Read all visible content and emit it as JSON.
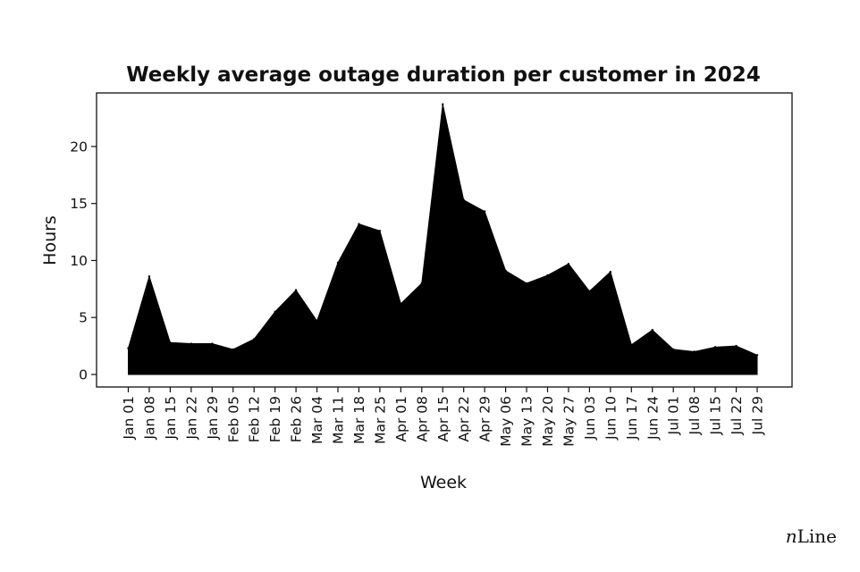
{
  "brand": {
    "n": "n",
    "rest": "Line"
  },
  "chart_data": {
    "type": "area",
    "title": "Weekly average outage duration per customer in 2024",
    "xlabel": "Week",
    "ylabel": "Hours",
    "ylim": [
      -1.1,
      24.7
    ],
    "yticks": [
      0,
      5,
      10,
      15,
      20
    ],
    "grid": false,
    "color": "#000000",
    "categories": [
      "Jan 01",
      "Jan 08",
      "Jan 15",
      "Jan 22",
      "Jan 29",
      "Feb 05",
      "Feb 12",
      "Feb 19",
      "Feb 26",
      "Mar 04",
      "Mar 11",
      "Mar 18",
      "Mar 25",
      "Apr 01",
      "Apr 08",
      "Apr 15",
      "Apr 22",
      "Apr 29",
      "May 06",
      "May 13",
      "May 20",
      "May 27",
      "Jun 03",
      "Jun 10",
      "Jun 17",
      "Jun 24",
      "Jul 01",
      "Jul 08",
      "Jul 15",
      "Jul 22",
      "Jul 29"
    ],
    "values": [
      2.3,
      8.6,
      2.8,
      2.7,
      2.7,
      2.2,
      3.1,
      5.5,
      7.4,
      4.7,
      9.8,
      13.2,
      12.6,
      6.2,
      8.0,
      23.7,
      15.3,
      14.3,
      9.1,
      8.0,
      8.7,
      9.7,
      7.3,
      9.0,
      2.6,
      3.9,
      2.2,
      2.0,
      2.4,
      2.5,
      1.7
    ]
  }
}
